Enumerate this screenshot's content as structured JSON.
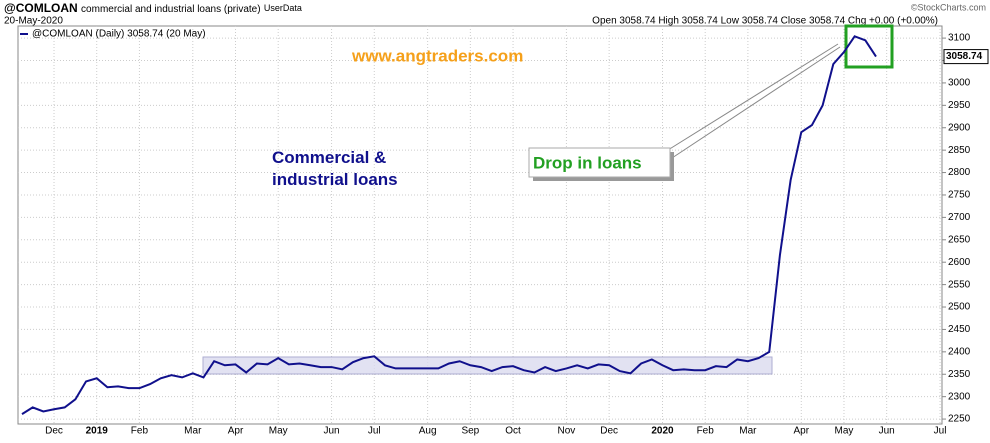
{
  "chart_data": {
    "type": "line",
    "symbol": "@COMLOAN",
    "title": "commercial and industrial loans (private)",
    "source_tag": "UserData",
    "date": "20-May-2020",
    "quote": "Open 3058.74 High 3058.74 Low 3058.74 Close 3058.74 Chg +0.00 (+0.00%)",
    "credit": "©StockCharts.com",
    "watermark": "www.angtraders.com",
    "annotation": "Commercial & industrial loans",
    "callout": "Drop in loans",
    "last_value_label": "3058.74",
    "categories": [
      null,
      null,
      null,
      "Dec",
      null,
      null,
      null,
      "2019",
      null,
      null,
      null,
      "Feb",
      null,
      null,
      null,
      null,
      "Mar",
      null,
      null,
      null,
      "Apr",
      null,
      null,
      null,
      "May",
      null,
      null,
      null,
      null,
      "Jun",
      null,
      null,
      null,
      "Jul",
      null,
      null,
      null,
      null,
      "Aug",
      null,
      null,
      null,
      "Sep",
      null,
      null,
      null,
      "Oct",
      null,
      null,
      null,
      null,
      "Nov",
      null,
      null,
      null,
      "Dec",
      null,
      null,
      null,
      null,
      "2020",
      null,
      null,
      null,
      "Feb",
      null,
      null,
      null,
      "Mar",
      null,
      null,
      null,
      null,
      "Apr",
      null,
      null,
      null,
      "May",
      null,
      null,
      null,
      "Jun",
      null,
      null,
      null,
      null,
      "Jul"
    ],
    "series": [
      {
        "name": "@COMLOAN (Daily) 3058.74 (20 May)",
        "color": "#10108c",
        "values": [
          2261,
          2276,
          2267,
          2272,
          2276,
          2294,
          2334,
          2341,
          2321,
          2323,
          2319,
          2319,
          2328,
          2341,
          2348,
          2343,
          2352,
          2343,
          2379,
          2370,
          2372,
          2354,
          2374,
          2372,
          2386,
          2372,
          2374,
          2370,
          2366,
          2366,
          2361,
          2377,
          2386,
          2390,
          2370,
          2363,
          2363,
          2363,
          2363,
          2363,
          2374,
          2379,
          2370,
          2366,
          2357,
          2366,
          2368,
          2359,
          2354,
          2366,
          2357,
          2363,
          2370,
          2363,
          2372,
          2370,
          2357,
          2352,
          2374,
          2383,
          2370,
          2359,
          2361,
          2359,
          2359,
          2368,
          2366,
          2383,
          2379,
          2386,
          2400,
          2616,
          2783,
          2890,
          2906,
          2950,
          3042,
          3069,
          3104,
          3095,
          3058.74,
          null,
          null,
          null,
          null,
          null,
          null
        ]
      }
    ],
    "ylim": [
      2239,
      3127
    ],
    "yticks": [
      2250,
      2300,
      2350,
      2400,
      2450,
      2500,
      2550,
      2600,
      2650,
      2700,
      2750,
      2800,
      2850,
      2900,
      2950,
      3000,
      3050,
      3100
    ],
    "grid": true
  }
}
